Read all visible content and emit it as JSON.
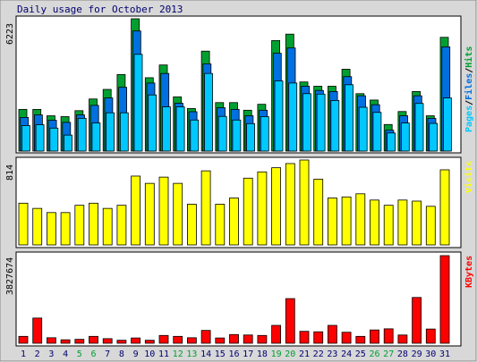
{
  "title": "Daily usage for October 2013",
  "colors": {
    "hits": "#00a030",
    "files": "#0070e0",
    "pages": "#00c8ff",
    "visits": "#ffff00",
    "kbytes": "#ff0000",
    "weekend": "#00a030",
    "weekday": "#000070",
    "frame_bg": "#d8d8d8",
    "plot_bg": "#ffffff"
  },
  "chart_data": [
    {
      "type": "bar",
      "panel": "hits-files-pages",
      "y_max_label": "6223",
      "ylim": [
        0,
        6223
      ],
      "legend": {
        "pages": "Pages",
        "sep1": "/",
        "files": "Files",
        "sep2": "/",
        "hits": "Hits"
      },
      "categories": [
        "1",
        "2",
        "3",
        "4",
        "5",
        "6",
        "7",
        "8",
        "9",
        "10",
        "11",
        "12",
        "13",
        "14",
        "15",
        "16",
        "17",
        "18",
        "19",
        "20",
        "21",
        "22",
        "23",
        "24",
        "25",
        "26",
        "27",
        "28",
        "29",
        "30",
        "31"
      ],
      "weekend_days": [
        5,
        6,
        12,
        13,
        19,
        20,
        26,
        27
      ],
      "series": [
        {
          "name": "Hits",
          "values": [
            1960,
            1960,
            1660,
            1620,
            1900,
            2450,
            2900,
            3600,
            6223,
            3450,
            4050,
            2550,
            2000,
            4700,
            2280,
            2280,
            1920,
            2200,
            5200,
            5500,
            3250,
            3050,
            3050,
            3850,
            2700,
            2400,
            1250,
            1860,
            2800,
            1660,
            5350
          ]
        },
        {
          "name": "Files",
          "values": [
            1580,
            1700,
            1450,
            1350,
            1700,
            2150,
            2500,
            3000,
            5650,
            3200,
            3650,
            2250,
            1850,
            4100,
            2040,
            1960,
            1660,
            1920,
            4600,
            4850,
            3050,
            2850,
            2800,
            3500,
            2600,
            2180,
            980,
            1660,
            2600,
            1540,
            4900
          ]
        },
        {
          "name": "Pages",
          "values": [
            1200,
            1240,
            1080,
            750,
            1540,
            1320,
            1800,
            1800,
            4550,
            2640,
            2080,
            2080,
            1460,
            3650,
            1630,
            1460,
            1290,
            1620,
            3300,
            3200,
            2700,
            2680,
            2380,
            3120,
            2060,
            1820,
            850,
            1320,
            2240,
            1300,
            2500
          ]
        }
      ]
    },
    {
      "type": "bar",
      "panel": "visits",
      "y_max_label": "814",
      "ylim": [
        0,
        814
      ],
      "legend": {
        "visits": "Visits"
      },
      "categories": [
        "1",
        "2",
        "3",
        "4",
        "5",
        "6",
        "7",
        "8",
        "9",
        "10",
        "11",
        "12",
        "13",
        "14",
        "15",
        "16",
        "17",
        "18",
        "19",
        "20",
        "21",
        "22",
        "23",
        "24",
        "25",
        "26",
        "27",
        "28",
        "29",
        "30",
        "31"
      ],
      "series": [
        {
          "name": "Visits",
          "values": [
            400,
            350,
            310,
            310,
            380,
            400,
            350,
            380,
            660,
            590,
            650,
            590,
            390,
            710,
            390,
            450,
            640,
            700,
            740,
            780,
            814,
            630,
            450,
            460,
            490,
            430,
            380,
            430,
            420,
            370,
            720
          ]
        }
      ]
    },
    {
      "type": "bar",
      "panel": "kbytes",
      "y_max_label": "3827674",
      "ylim": [
        0,
        3827674
      ],
      "legend": {
        "kbytes": "KBytes"
      },
      "categories": [
        "1",
        "2",
        "3",
        "4",
        "5",
        "6",
        "7",
        "8",
        "9",
        "10",
        "11",
        "12",
        "13",
        "14",
        "15",
        "16",
        "17",
        "18",
        "19",
        "20",
        "21",
        "22",
        "23",
        "24",
        "25",
        "26",
        "27",
        "28",
        "29",
        "30",
        "31"
      ],
      "series": [
        {
          "name": "KBytes",
          "values": [
            300000,
            1100000,
            240000,
            150000,
            170000,
            300000,
            200000,
            130000,
            230000,
            130000,
            340000,
            300000,
            240000,
            560000,
            230000,
            380000,
            360000,
            340000,
            780000,
            1950000,
            520000,
            500000,
            780000,
            480000,
            300000,
            580000,
            630000,
            360000,
            2000000,
            620000,
            3827674
          ]
        }
      ]
    }
  ]
}
